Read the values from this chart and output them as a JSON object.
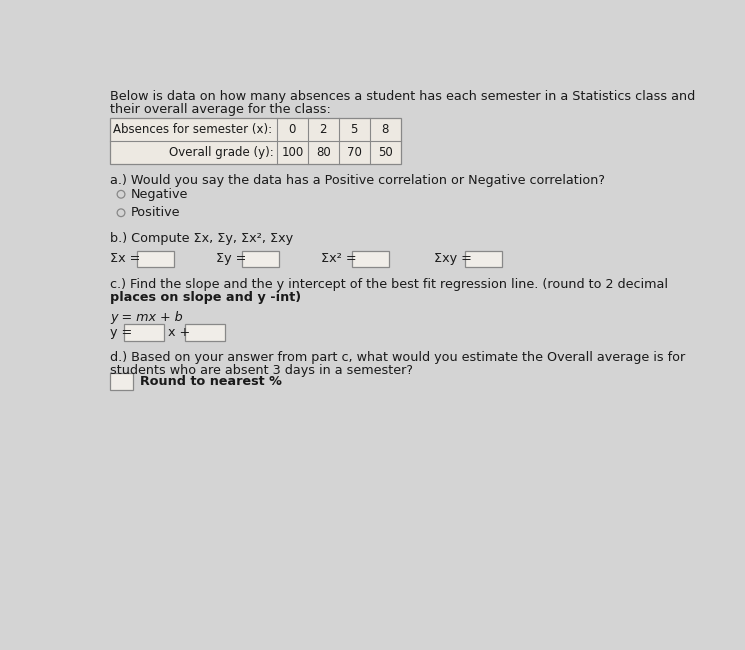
{
  "bg_color": "#d4d4d4",
  "title_line1": "Below is data on how many absences a student has each semester in a Statistics class and",
  "title_line2": "their overall average for the class:",
  "table": {
    "row1_label": "Absences for semester (x):",
    "row1_vals": [
      "0",
      "2",
      "5",
      "8"
    ],
    "row2_label": "Overall grade (y):",
    "row2_vals": [
      "100",
      "80",
      "70",
      "50"
    ]
  },
  "part_a_label": "a.) Would you say the data has a Positive correlation or Negative correlation?",
  "options_a": [
    "Negative",
    "Positive"
  ],
  "part_b_label": "b.) Compute Σx, Σy, Σx², Σxy",
  "sum_labels": [
    "Σx =",
    "Σy =",
    "Σx² =",
    "Σxy ="
  ],
  "part_c_line1": "c.) Find the slope and the y intercept of the best fit regression line. (round to 2 decimal",
  "part_c_line2": "places on slope and y -int)",
  "formula_c": "y = mx + b",
  "part_c_eq": "y =",
  "part_c_mid": "x +",
  "part_d_line1": "d.) Based on your answer from part c, what would you estimate the Overall average is for",
  "part_d_line2": "students who are absent 3 days in a semester?",
  "part_d_note": "Round to nearest %",
  "text_color": "#1a1a1a",
  "box_color": "#f0ede8",
  "box_edge": "#888888",
  "table_bg": "#ede9e2"
}
